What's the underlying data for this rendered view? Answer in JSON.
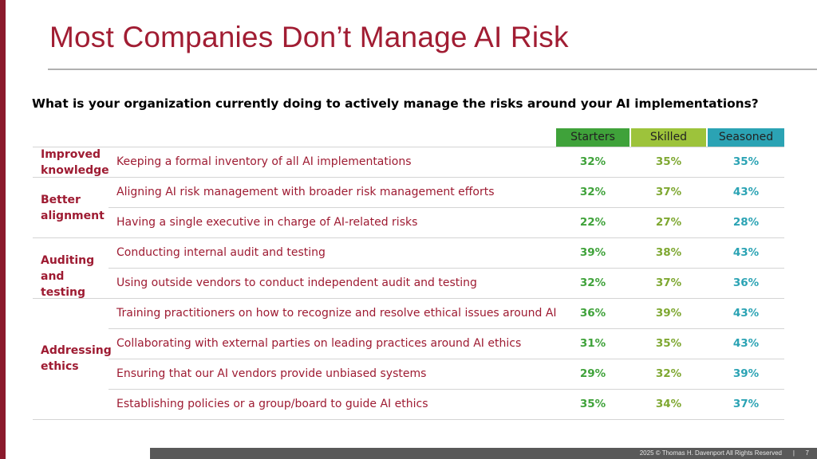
{
  "slide": {
    "title": "Most Companies Don’t Manage AI Risk",
    "question": "What is your organization currently doing to actively manage the risks around your AI implementations?"
  },
  "columns": [
    "Starters",
    "Skilled",
    "Seasoned"
  ],
  "column_colors": {
    "starters": "#3fa23a",
    "skilled": "#9dc33b",
    "seasoned": "#2ba3b4"
  },
  "groups": [
    {
      "label": "Improved knowledge"
    },
    {
      "label": "Better alignment"
    },
    {
      "label": "Auditing and testing"
    },
    {
      "label": "Addressing ethics"
    }
  ],
  "rows": [
    {
      "label": "Keeping a formal inventory of all AI implementations",
      "starters": "32%",
      "skilled": "35%",
      "seasoned": "35%"
    },
    {
      "label": "Aligning AI risk management with broader risk management efforts",
      "starters": "32%",
      "skilled": "37%",
      "seasoned": "43%"
    },
    {
      "label": "Having a single executive in charge of AI-related risks",
      "starters": "22%",
      "skilled": "27%",
      "seasoned": "28%"
    },
    {
      "label": "Conducting internal audit and testing",
      "starters": "39%",
      "skilled": "38%",
      "seasoned": "43%"
    },
    {
      "label": "Using outside vendors to conduct independent audit and testing",
      "starters": "32%",
      "skilled": "37%",
      "seasoned": "36%"
    },
    {
      "label": "Training practitioners on how to recognize and resolve ethical issues around AI",
      "starters": "36%",
      "skilled": "39%",
      "seasoned": "43%"
    },
    {
      "label": "Collaborating with external parties on leading practices around AI ethics",
      "starters": "31%",
      "skilled": "35%",
      "seasoned": "43%"
    },
    {
      "label": "Ensuring that our AI vendors provide unbiased systems",
      "starters": "29%",
      "skilled": "32%",
      "seasoned": "39%"
    },
    {
      "label": "Establishing policies or a group/board to guide AI ethics",
      "starters": "35%",
      "skilled": "34%",
      "seasoned": "37%"
    }
  ],
  "footer": {
    "copyright": "2025 © Thomas H. Davenport All Rights Reserved",
    "separator": "|",
    "page": "7"
  }
}
